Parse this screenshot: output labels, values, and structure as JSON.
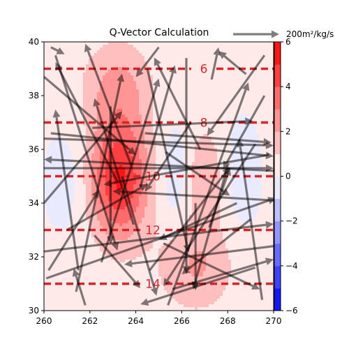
{
  "chart_data": {
    "type": "heatmap",
    "title": "Q-Vector Calculation",
    "xlim": [
      260,
      270
    ],
    "ylim": [
      30,
      40
    ],
    "xticks": [
      "260",
      "262",
      "264",
      "266",
      "268",
      "270"
    ],
    "yticks": [
      "30",
      "32",
      "34",
      "36",
      "38",
      "40"
    ],
    "colorbar": {
      "range": [
        -6,
        6
      ],
      "ticks": [
        "−6",
        "−4",
        "−2",
        "0",
        "2",
        "4",
        "6"
      ],
      "cmap": "bwr"
    },
    "quiver_key": {
      "label": "200m²/kg/s"
    },
    "contours": [
      {
        "level": "6",
        "y": 39
      },
      {
        "level": "8",
        "y": 37
      },
      {
        "level": "10",
        "y": 35
      },
      {
        "level": "12",
        "y": 33
      },
      {
        "level": "14",
        "y": 31
      }
    ],
    "heat_blobs": [
      {
        "x": 263.3,
        "y": 34.9,
        "sx": 0.9,
        "sy": 1.6,
        "amp": 5.0
      },
      {
        "x": 263.2,
        "y": 38.4,
        "sx": 1.1,
        "sy": 1.2,
        "amp": 2.0
      },
      {
        "x": 266.6,
        "y": 31.6,
        "sx": 1.2,
        "sy": 1.2,
        "amp": 1.9
      },
      {
        "x": 267.0,
        "y": 35.0,
        "sx": 0.6,
        "sy": 1.4,
        "amp": 1.6
      },
      {
        "x": 265.7,
        "y": 35.0,
        "sx": 0.5,
        "sy": 1.3,
        "amp": -0.9
      },
      {
        "x": 268.6,
        "y": 35.0,
        "sx": 0.5,
        "sy": 1.3,
        "amp": -0.8
      },
      {
        "x": 261.0,
        "y": 34.8,
        "sx": 0.6,
        "sy": 1.2,
        "amp": -0.7
      }
    ],
    "vectors": [
      {
        "x": 260.0,
        "y": 38.7,
        "u": 4.0,
        "v": -3.4
      },
      {
        "x": 260.0,
        "y": 36.4,
        "u": 10.0,
        "v": -0.3
      },
      {
        "x": 260.0,
        "y": 35.3,
        "u": 10.0,
        "v": 0.0
      },
      {
        "x": 260.0,
        "y": 34.0,
        "u": 3.4,
        "v": 4.0
      },
      {
        "x": 260.0,
        "y": 32.2,
        "u": 10.0,
        "v": 1.2
      },
      {
        "x": 260.1,
        "y": 31.2,
        "u": 10.0,
        "v": 3.5
      },
      {
        "x": 260.2,
        "y": 31.5,
        "u": 2.2,
        "v": 3.5
      },
      {
        "x": 260.3,
        "y": 39.8,
        "u": 0.6,
        "v": -0.3
      },
      {
        "x": 260.5,
        "y": 39.5,
        "u": 2.7,
        "v": -8.5
      },
      {
        "x": 260.3,
        "y": 36.6,
        "u": 9.7,
        "v": -1.0
      },
      {
        "x": 261.4,
        "y": 30.7,
        "u": 2.0,
        "v": 9.5
      },
      {
        "x": 261.5,
        "y": 31.5,
        "u": -1.0,
        "v": 7.0
      },
      {
        "x": 261.8,
        "y": 30.2,
        "u": -0.5,
        "v": 1.6
      },
      {
        "x": 262.2,
        "y": 32.8,
        "u": 2.0,
        "v": -2.3
      },
      {
        "x": 262.5,
        "y": 31.8,
        "u": 2.5,
        "v": 8.0
      },
      {
        "x": 262.9,
        "y": 37.6,
        "u": 0.0,
        "v": -6.0
      },
      {
        "x": 263.2,
        "y": 34.8,
        "u": -2.7,
        "v": 5.2
      },
      {
        "x": 263.4,
        "y": 35.0,
        "u": 1.5,
        "v": -5.2
      },
      {
        "x": 263.8,
        "y": 35.4,
        "u": -2.0,
        "v": 5.3
      },
      {
        "x": 263.9,
        "y": 33.2,
        "u": -1.7,
        "v": 5.5
      },
      {
        "x": 264.2,
        "y": 34.6,
        "u": 1.5,
        "v": 5.3
      },
      {
        "x": 264.6,
        "y": 31.5,
        "u": 3.5,
        "v": 4.5
      },
      {
        "x": 265.0,
        "y": 39.8,
        "u": -1.0,
        "v": -1.3
      },
      {
        "x": 264.5,
        "y": 39.0,
        "u": 1.8,
        "v": -8.0
      },
      {
        "x": 264.4,
        "y": 36.6,
        "u": 5.5,
        "v": -0.4
      },
      {
        "x": 265.4,
        "y": 30.2,
        "u": 3.5,
        "v": 9.7
      },
      {
        "x": 265.3,
        "y": 35.9,
        "u": 2.8,
        "v": -1.9
      },
      {
        "x": 265.2,
        "y": 32.5,
        "u": 4.2,
        "v": -2.0
      },
      {
        "x": 265.6,
        "y": 30.8,
        "u": 4.4,
        "v": 1.3
      },
      {
        "x": 266.2,
        "y": 39.4,
        "u": 0.0,
        "v": -9.4
      },
      {
        "x": 266.4,
        "y": 37.0,
        "u": -2.0,
        "v": -3.0
      },
      {
        "x": 266.8,
        "y": 36.0,
        "u": -2.0,
        "v": 4.0
      },
      {
        "x": 266.6,
        "y": 34.0,
        "u": 0.0,
        "v": -3.8
      },
      {
        "x": 267.2,
        "y": 33.1,
        "u": 0.9,
        "v": 2.6
      },
      {
        "x": 267.3,
        "y": 38.6,
        "u": 0.3,
        "v": 1.4
      },
      {
        "x": 268.0,
        "y": 35.4,
        "u": -1.5,
        "v": -5.4
      },
      {
        "x": 268.4,
        "y": 34.0,
        "u": -3.4,
        "v": -1.6
      },
      {
        "x": 268.8,
        "y": 38.8,
        "u": -1.2,
        "v": 1.0
      },
      {
        "x": 269.0,
        "y": 33.4,
        "u": -3.0,
        "v": -2.4
      },
      {
        "x": 269.2,
        "y": 36.2,
        "u": -4.0,
        "v": -6.2
      },
      {
        "x": 269.2,
        "y": 31.6,
        "u": -5.0,
        "v": -1.6
      },
      {
        "x": 269.6,
        "y": 38.0,
        "u": -1.8,
        "v": -3.2
      },
      {
        "x": 269.6,
        "y": 39.5,
        "u": -2.5,
        "v": -3.5
      },
      {
        "x": 269.8,
        "y": 35.8,
        "u": -7.2,
        "v": -1.3
      },
      {
        "x": 270.0,
        "y": 35.2,
        "u": -10.0,
        "v": 0.5
      },
      {
        "x": 270.0,
        "y": 34.1,
        "u": -7.0,
        "v": 0.4
      },
      {
        "x": 270.0,
        "y": 32.4,
        "u": -6.5,
        "v": -0.8
      },
      {
        "x": 269.5,
        "y": 30.4,
        "u": -1.0,
        "v": 7.0
      },
      {
        "x": 262.1,
        "y": 36.8,
        "u": 7.0,
        "v": 0.3
      },
      {
        "x": 261.0,
        "y": 33.0,
        "u": 3.5,
        "v": 2.0
      }
    ]
  }
}
